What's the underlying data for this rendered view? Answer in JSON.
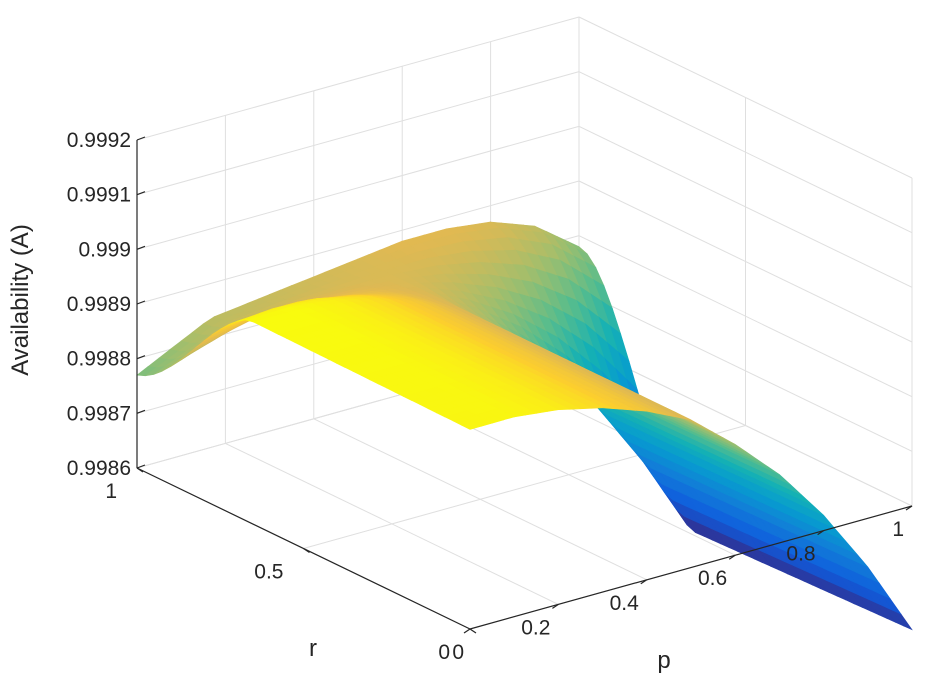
{
  "chart_data": {
    "type": "surface",
    "xlabel": "p",
    "ylabel": "r",
    "zlabel": "Availability (A)",
    "xlim": [
      0,
      1
    ],
    "ylim": [
      0,
      1
    ],
    "zlim": [
      0.9986,
      0.9992
    ],
    "grid": true,
    "colormap": "parula",
    "x_ticks": [
      {
        "value": 0,
        "label": "0"
      },
      {
        "value": 0.2,
        "label": "0.2"
      },
      {
        "value": 0.4,
        "label": "0.4"
      },
      {
        "value": 0.6,
        "label": "0.6"
      },
      {
        "value": 0.8,
        "label": "0.8"
      },
      {
        "value": 1,
        "label": "1"
      }
    ],
    "y_ticks": [
      {
        "value": 0,
        "label": "0"
      },
      {
        "value": 0.5,
        "label": "0.5"
      },
      {
        "value": 1,
        "label": "1"
      }
    ],
    "z_ticks": [
      {
        "value": 0.9986,
        "label": "0.9986"
      },
      {
        "value": 0.9987,
        "label": "0.9987"
      },
      {
        "value": 0.9988,
        "label": "0.9988"
      },
      {
        "value": 0.9989,
        "label": "0.9989"
      },
      {
        "value": 0.999,
        "label": "0.999"
      },
      {
        "value": 0.9991,
        "label": "0.9991"
      },
      {
        "value": 0.9992,
        "label": "0.9992"
      }
    ],
    "surface": {
      "p": [
        0,
        0.1,
        0.2,
        0.3,
        0.4,
        0.5,
        0.6,
        0.7,
        0.8,
        0.9,
        1.0
      ],
      "r": [
        0,
        0.1,
        0.2,
        0.3,
        0.4,
        0.5,
        0.6,
        0.7,
        0.8,
        0.9,
        1.0
      ],
      "z_at_r1": [
        0.99882,
        0.99883,
        0.99884,
        0.99885,
        0.99886,
        0.99887,
        0.99888,
        0.99888,
        0.99887,
        0.99884,
        0.99878
      ],
      "z_at_r0_max": [
        0.99897,
        0.99897,
        0.99896,
        0.99894,
        0.99891,
        0.99887,
        0.9988,
        0.99872,
        0.99862,
        0.9985,
        0.99836
      ],
      "z_corner_p0_r0": 0.99892
    }
  }
}
